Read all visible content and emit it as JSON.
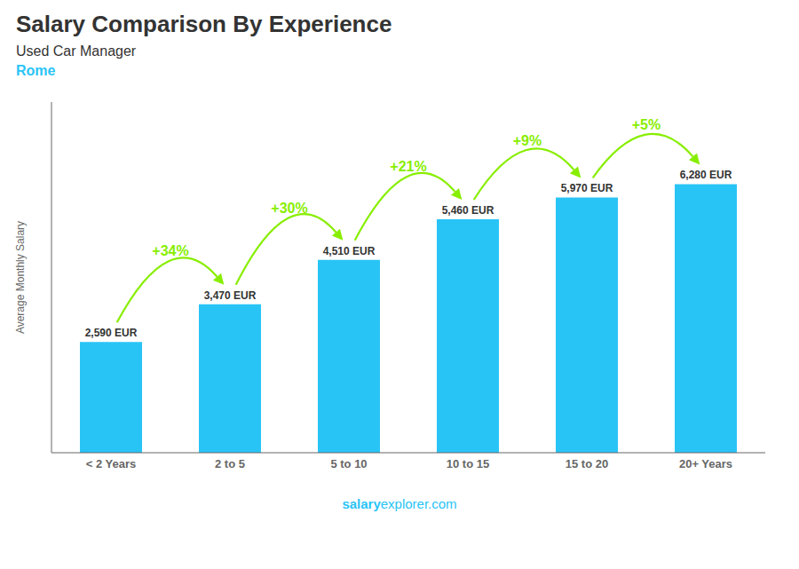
{
  "chart_data": {
    "type": "bar",
    "title": "Salary Comparison By Experience",
    "subtitle": "Used Car Manager",
    "city": "Rome",
    "ylabel": "Average Monthly Salary",
    "source": [
      "salary",
      "explorer.com"
    ],
    "categories": [
      "< 2 Years",
      "2 to 5",
      "5 to 10",
      "10 to 15",
      "15 to 20",
      "20+ Years"
    ],
    "values": [
      2590,
      3470,
      4510,
      5460,
      5970,
      6280
    ],
    "value_labels": [
      "2,590 EUR",
      "3,470 EUR",
      "4,510 EUR",
      "5,460 EUR",
      "5,970 EUR",
      "6,280 EUR"
    ],
    "data_labels": true,
    "color": "#29c4f6",
    "ylim": [
      0,
      8200
    ],
    "tick_labels": "x",
    "grid": false,
    "annotations": [
      {
        "text": "+34%",
        "from": "< 2 Years",
        "to": "2 to 5",
        "color": "#88ee00"
      },
      {
        "text": "+30%",
        "from": "2 to 5",
        "to": "5 to 10",
        "color": "#88ee00"
      },
      {
        "text": "+21%",
        "from": "5 to 10",
        "to": "10 to 15",
        "color": "#88ee00"
      },
      {
        "text": "+9%",
        "from": "10 to 15",
        "to": "15 to 20",
        "color": "#88ee00"
      },
      {
        "text": "+5%",
        "from": "15 to 20",
        "to": "20+ Years",
        "color": "#88ee00"
      }
    ]
  }
}
